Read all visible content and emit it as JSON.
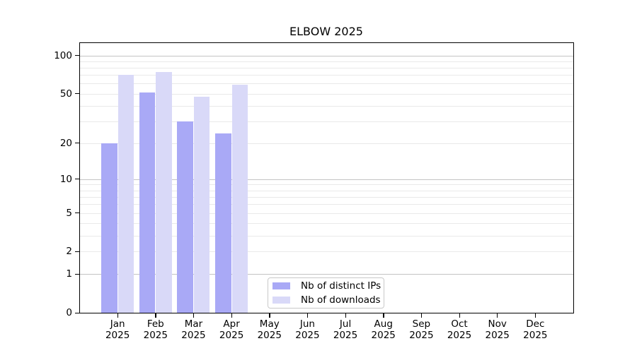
{
  "chart_data": {
    "type": "bar",
    "title": "ELBOW 2025",
    "categories": [
      "Jan",
      "Feb",
      "Mar",
      "Apr",
      "May",
      "Jun",
      "Jul",
      "Aug",
      "Sep",
      "Oct",
      "Nov",
      "Dec"
    ],
    "x_tick_second_line": "2025",
    "series": [
      {
        "name": "Nb of distinct IPs",
        "color": "#a9a9f6",
        "values": [
          20,
          51,
          30,
          24,
          null,
          null,
          null,
          null,
          null,
          null,
          null,
          null
        ]
      },
      {
        "name": "Nb of downloads",
        "color": "#d9d9f8",
        "values": [
          70,
          74,
          47,
          59,
          null,
          null,
          null,
          null,
          null,
          null,
          null,
          null
        ]
      }
    ],
    "xlabel": "",
    "ylabel": "",
    "yscale": "log1p",
    "ylim": [
      0,
      126
    ],
    "ytick_labels": [
      "100",
      "50",
      "20",
      "10",
      "5",
      "2",
      "1",
      "0"
    ],
    "ytick_values": [
      100,
      50,
      20,
      10,
      5,
      2,
      1,
      0
    ],
    "major_gridlines": [
      1,
      10,
      100
    ],
    "minor_gridlines": [
      2,
      3,
      4,
      5,
      6,
      7,
      8,
      9,
      20,
      30,
      40,
      50,
      60,
      70,
      80,
      90
    ],
    "grid": "on",
    "legend_position": "lower center",
    "colors": {
      "major_grid": "#c3c3c3",
      "minor_grid": "#e9e9e9",
      "spine": "#000000",
      "text": "#000000",
      "legend_border": "#c9c9c9",
      "background": "#ffffff"
    }
  }
}
